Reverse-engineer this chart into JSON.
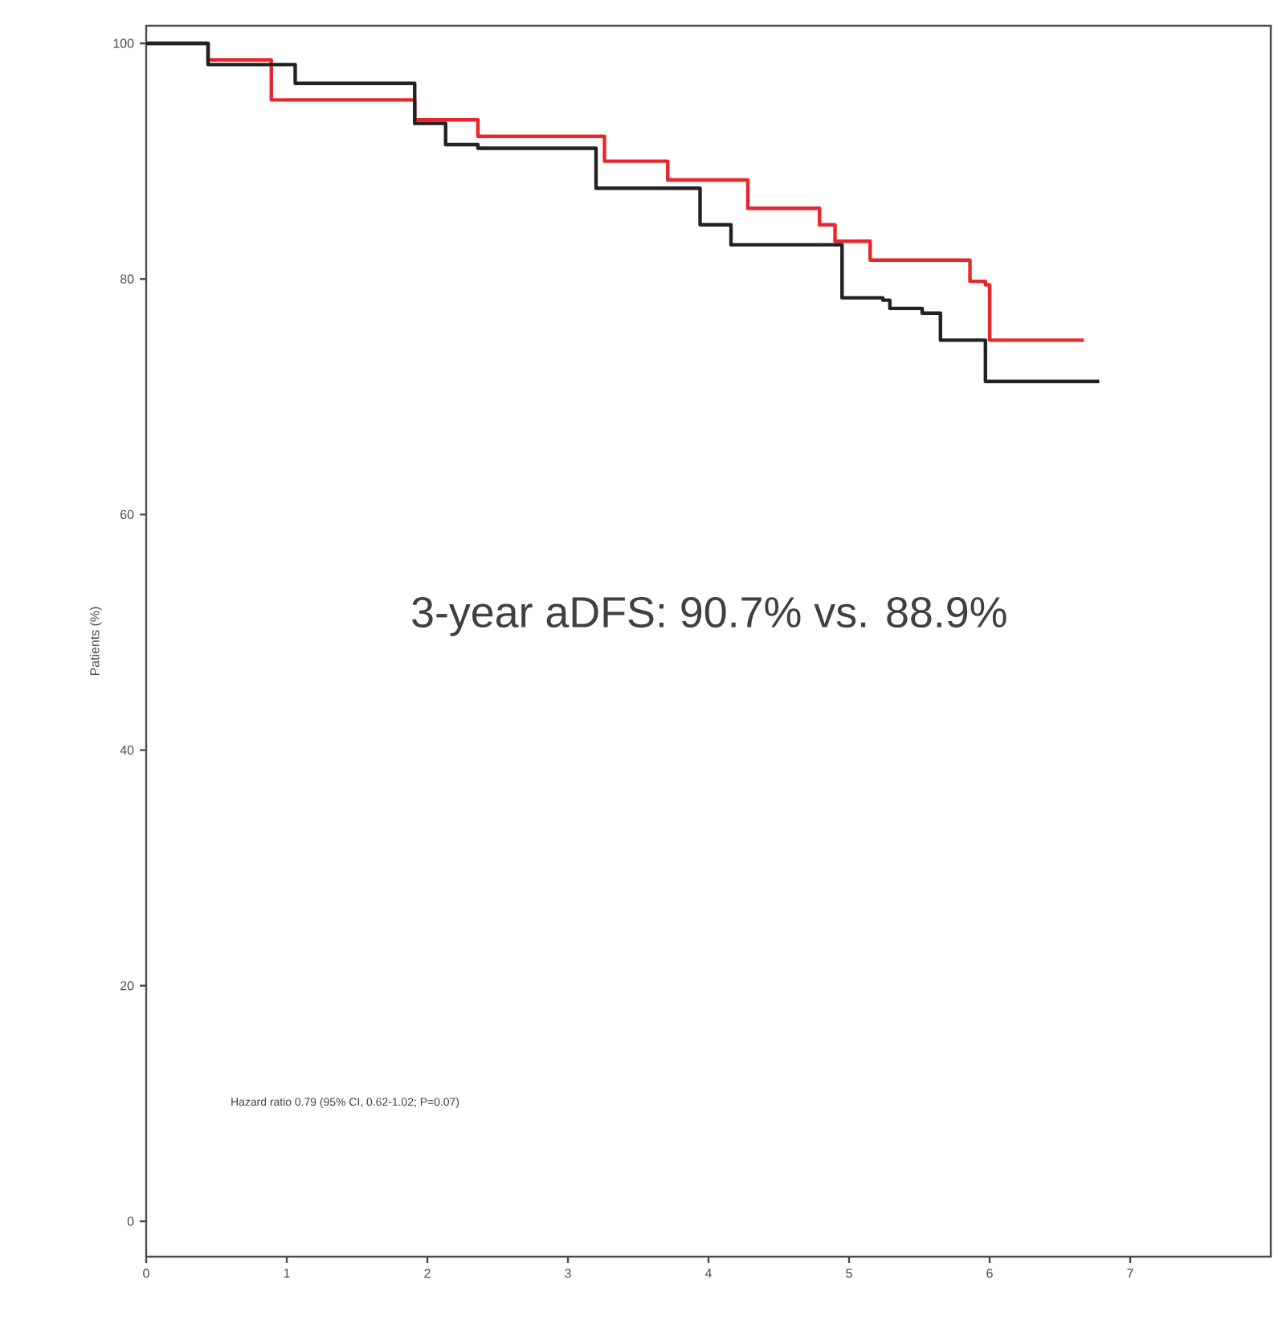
{
  "chart_data": {
    "type": "step",
    "ylabel": "Patients (%)",
    "xlim": [
      0,
      8
    ],
    "ylim": [
      -3,
      101.5
    ],
    "xticks": [
      0,
      1,
      2,
      3,
      4,
      5,
      6,
      7
    ],
    "yticks": [
      0,
      20,
      40,
      60,
      80,
      100
    ],
    "annotations": [
      "3-year aDFS: 90.7% vs. 88.9%",
      "Hazard ratio 0.79 (95% CI, 0.62-1.02; P=0.07)"
    ],
    "series": [
      {
        "color": "#e8262b",
        "x": [
          0,
          0.44,
          0.89,
          1.91,
          2.36,
          3.26,
          3.71,
          4.28,
          4.79,
          4.9,
          5.15,
          5.82,
          5.86,
          5.97,
          6.0,
          6.67
        ],
        "values": [
          100,
          98.6,
          95.2,
          93.5,
          92.1,
          90.0,
          88.4,
          86.0,
          84.6,
          83.2,
          81.6,
          81.6,
          79.8,
          79.5,
          74.8,
          74.8
        ]
      },
      {
        "color": "#222222",
        "x": [
          0,
          0.44,
          1.06,
          1.91,
          2.13,
          2.36,
          3.2,
          3.94,
          4.16,
          4.95,
          5.24,
          5.29,
          5.52,
          5.65,
          5.94,
          5.97,
          6.78
        ],
        "values": [
          100,
          98.2,
          96.6,
          93.2,
          91.4,
          91.1,
          87.7,
          84.6,
          82.9,
          78.4,
          78.2,
          77.5,
          77.1,
          74.8,
          74.8,
          71.3,
          71.3
        ]
      }
    ]
  }
}
